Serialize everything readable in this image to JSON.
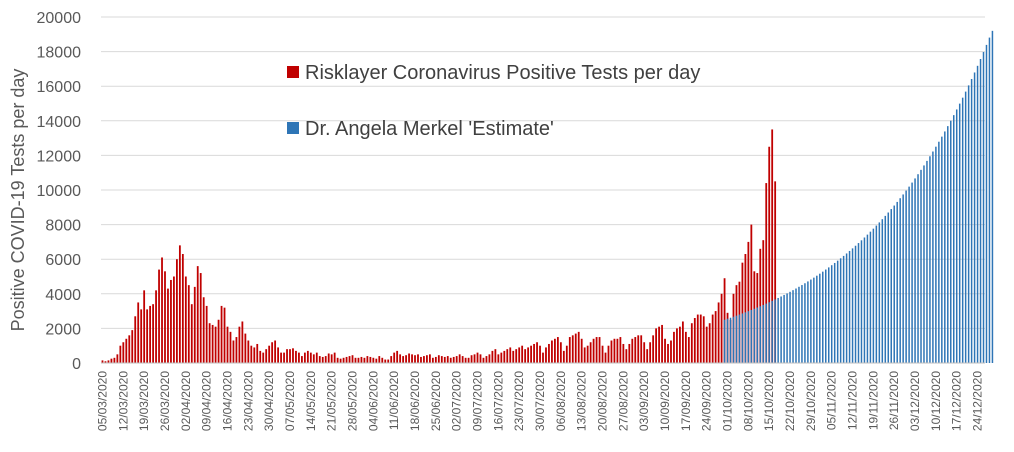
{
  "chart_data": {
    "type": "bar",
    "ylabel": "Positive COVID-19 Tests per day",
    "ylim": [
      0,
      20000
    ],
    "yticks": [
      0,
      2000,
      4000,
      6000,
      8000,
      10000,
      12000,
      14000,
      16000,
      18000,
      20000
    ],
    "grid": true,
    "legend_position": "top-center",
    "x_start_date": "2020-03-05",
    "x_end_date": "2020-12-27",
    "xtick_labels": [
      "05/03/2020",
      "12/03/2020",
      "19/03/2020",
      "26/03/2020",
      "02/04/2020",
      "09/04/2020",
      "16/04/2020",
      "23/04/2020",
      "30/04/2020",
      "07/05/2020",
      "14/05/2020",
      "21/05/2020",
      "28/05/2020",
      "04/06/2020",
      "11/06/2020",
      "18/06/2020",
      "25/06/2020",
      "02/07/2020",
      "09/07/2020",
      "16/07/2020",
      "23/07/2020",
      "30/07/2020",
      "06/08/2020",
      "13/08/2020",
      "20/08/2020",
      "27/08/2020",
      "03/09/2020",
      "10/09/2020",
      "17/09/2020",
      "24/09/2020",
      "01/10/2020",
      "08/10/2020",
      "15/10/2020",
      "22/10/2020",
      "29/10/2020",
      "05/11/2020",
      "12/11/2020",
      "19/11/2020",
      "26/11/2020",
      "03/12/2020",
      "10/12/2020",
      "17/12/2020",
      "24/12/2020"
    ],
    "series": [
      {
        "name": "Risklayer Coronavirus Positive Tests per day",
        "color": "#C00000",
        "start_date": "2020-03-05",
        "values": [
          150,
          100,
          150,
          250,
          300,
          500,
          1000,
          1200,
          1400,
          1600,
          1900,
          2700,
          3500,
          3100,
          4200,
          3100,
          3300,
          3400,
          4200,
          5400,
          6100,
          5300,
          4300,
          4800,
          5000,
          6000,
          6800,
          6300,
          5000,
          4500,
          3400,
          4400,
          5600,
          5200,
          3800,
          3300,
          2300,
          2200,
          2100,
          2500,
          3300,
          3200,
          2100,
          1800,
          1300,
          1500,
          2100,
          2400,
          1700,
          1300,
          1000,
          900,
          1100,
          700,
          600,
          800,
          1000,
          1200,
          1300,
          900,
          600,
          600,
          800,
          800,
          850,
          700,
          600,
          400,
          600,
          700,
          600,
          500,
          600,
          400,
          350,
          400,
          550,
          500,
          600,
          300,
          250,
          300,
          350,
          400,
          450,
          300,
          300,
          350,
          300,
          400,
          350,
          300,
          250,
          400,
          300,
          200,
          200,
          400,
          600,
          700,
          500,
          400,
          450,
          550,
          500,
          450,
          500,
          350,
          400,
          450,
          500,
          300,
          350,
          450,
          400,
          350,
          400,
          300,
          350,
          400,
          500,
          400,
          300,
          300,
          450,
          500,
          600,
          500,
          300,
          400,
          500,
          700,
          800,
          500,
          600,
          700,
          800,
          900,
          700,
          800,
          900,
          1000,
          800,
          900,
          1000,
          1100,
          1200,
          1000,
          600,
          900,
          1100,
          1300,
          1400,
          1500,
          1200,
          700,
          1000,
          1500,
          1600,
          1700,
          1800,
          1400,
          900,
          1000,
          1200,
          1400,
          1500,
          1500,
          1000,
          600,
          1000,
          1300,
          1400,
          1400,
          1500,
          1100,
          800,
          1100,
          1400,
          1500,
          1600,
          1600,
          1200,
          800,
          1200,
          1600,
          2000,
          2100,
          2200,
          1400,
          1100,
          1300,
          1800,
          2000,
          2100,
          2400,
          1800,
          1500,
          2300,
          2600,
          2800,
          2800,
          2700,
          2100,
          2300,
          2800,
          3000,
          3500,
          4000,
          4900,
          2900,
          2500,
          4000,
          4500,
          4700,
          5800,
          6300,
          7000,
          8000,
          5300,
          5200,
          6600,
          7100,
          10400,
          12500,
          13500,
          10500
        ]
      },
      {
        "name": "Dr. Angela Merkel 'Estimate'",
        "color": "#2E75B6",
        "start_date": "2020-09-30",
        "values": [
          2500,
          2558,
          2616,
          2676,
          2737,
          2800,
          2864,
          2930,
          2997,
          3065,
          3136,
          3207,
          3281,
          3356,
          3433,
          3512,
          3592,
          3675,
          3759,
          3845,
          3933,
          4023,
          4115,
          4210,
          4306,
          4405,
          4506,
          4609,
          4715,
          4823,
          4934,
          5047,
          5163,
          5281,
          5402,
          5526,
          5653,
          5783,
          5915,
          6051,
          6190,
          6332,
          6477,
          6626,
          6778,
          6933,
          7092,
          7255,
          7421,
          7592,
          7766,
          7944,
          8126,
          8313,
          8504,
          8699,
          8898,
          9102,
          9311,
          9525,
          9743,
          9967,
          10195,
          10429,
          10669,
          10913,
          11164,
          11420,
          11682,
          11950,
          12224,
          12504,
          12791,
          13085,
          13385,
          13692,
          14006,
          14328,
          14656,
          14993,
          15337,
          15688,
          16048,
          16417,
          16793,
          17178,
          17572,
          17976,
          18388,
          18810,
          19200
        ]
      }
    ]
  }
}
